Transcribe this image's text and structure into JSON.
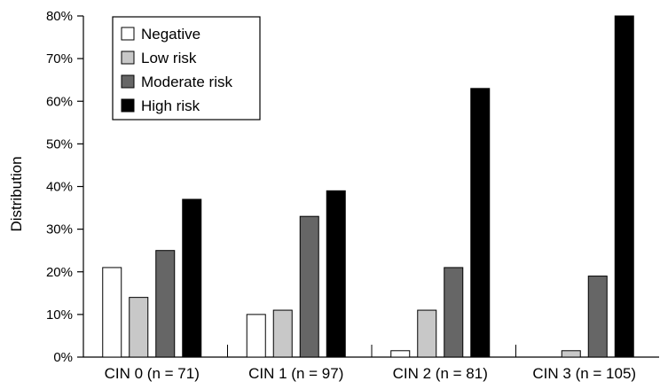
{
  "chart_data": {
    "type": "bar",
    "title": "",
    "xlabel": "",
    "ylabel": "Distribution",
    "ylim": [
      0,
      80
    ],
    "y_ticks": [
      "0%",
      "10%",
      "20%",
      "30%",
      "40%",
      "50%",
      "60%",
      "70%",
      "80%"
    ],
    "y_tick_values": [
      0,
      10,
      20,
      30,
      40,
      50,
      60,
      70,
      80
    ],
    "grid": false,
    "legend_position": "top-left",
    "categories": [
      "CIN 0 (n = 71)",
      "CIN 1 (n = 97)",
      "CIN 2 (n = 81)",
      "CIN 3 (n = 105)"
    ],
    "series": [
      {
        "name": "Negative",
        "color": "#ffffff",
        "values": [
          21,
          10,
          1.5,
          0
        ]
      },
      {
        "name": "Low risk",
        "color": "#c8c8c8",
        "values": [
          14,
          11,
          11,
          1.5
        ]
      },
      {
        "name": "Moderate risk",
        "color": "#666666",
        "values": [
          25,
          33,
          21,
          19
        ]
      },
      {
        "name": "High risk",
        "color": "#000000",
        "values": [
          37,
          39,
          63,
          80
        ]
      }
    ]
  }
}
